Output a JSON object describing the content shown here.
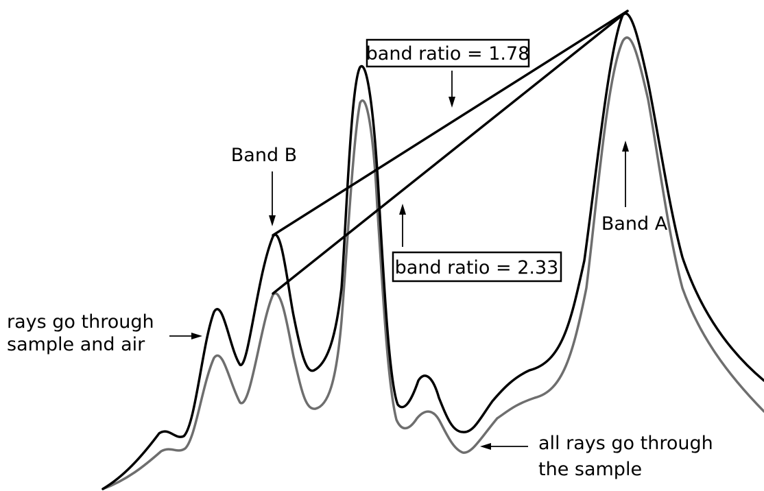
{
  "labels": {
    "band_b": "Band B",
    "band_a": "Band A",
    "ratio_upper": "band ratio = 1.78",
    "ratio_lower": "band ratio = 2.33",
    "air_line1": "rays go through",
    "air_line2": "sample and air",
    "sample_line1": "all rays go through",
    "sample_line2": "the sample"
  },
  "colors": {
    "spectrum_sample_and_air": "#000000",
    "spectrum_sample_only": "#6e6e6e",
    "ratio_lines": "#000000"
  }
}
